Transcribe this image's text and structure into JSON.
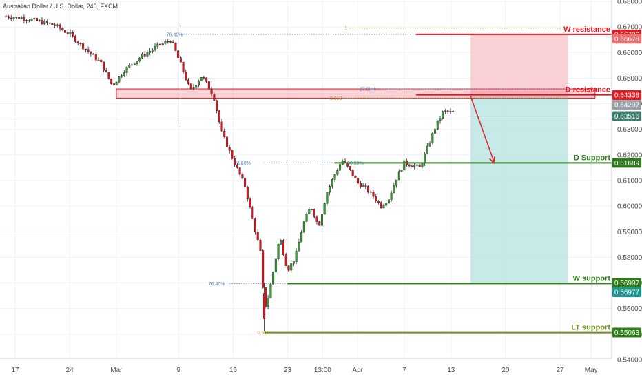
{
  "header": {
    "title": "Australian Dollar / U.S. Dollar, 240, FXCM"
  },
  "chart_data": {
    "type": "candlestick",
    "title": "Australian Dollar / U.S. Dollar, 240, FXCM",
    "xlabel": "",
    "ylabel": "",
    "ylim": [
      0.54,
      0.68
    ],
    "grid": true,
    "y_ticks": [
      "0.68000",
      "0.67000",
      "0.66000",
      "0.65000",
      "0.64000",
      "0.63000",
      "0.62000",
      "0.61000",
      "0.60000",
      "0.59000",
      "0.58000",
      "0.57000",
      "0.56000",
      "0.55000",
      "0.54000"
    ],
    "y_tick_values": [
      0.68,
      0.67,
      0.66,
      0.65,
      0.64,
      0.63,
      0.62,
      0.61,
      0.6,
      0.59,
      0.58,
      0.57,
      0.56,
      0.55,
      0.54
    ],
    "x_ticks": [
      {
        "label": "17",
        "day": 0
      },
      {
        "label": "24",
        "day": 7
      },
      {
        "label": "Mar",
        "day": 13
      },
      {
        "label": "9",
        "day": 21
      },
      {
        "label": "16",
        "day": 28
      },
      {
        "label": "23",
        "day": 35
      },
      {
        "label": "13:00",
        "day": 39.5
      },
      {
        "label": "Apr",
        "day": 44
      },
      {
        "label": "7",
        "day": 50
      },
      {
        "label": "13",
        "day": 56
      },
      {
        "label": "20",
        "day": 63
      },
      {
        "label": "27",
        "day": 70
      },
      {
        "label": "May",
        "day": 74
      }
    ],
    "close_path": [
      {
        "day": -1.5,
        "price": 0.6742
      },
      {
        "day": 1,
        "price": 0.6735
      },
      {
        "day": 3,
        "price": 0.6722
      },
      {
        "day": 5,
        "price": 0.6708
      },
      {
        "day": 7,
        "price": 0.6672
      },
      {
        "day": 9,
        "price": 0.6615
      },
      {
        "day": 11,
        "price": 0.656
      },
      {
        "day": 12.5,
        "price": 0.647
      },
      {
        "day": 14,
        "price": 0.653
      },
      {
        "day": 16,
        "price": 0.658
      },
      {
        "day": 18,
        "price": 0.662
      },
      {
        "day": 20,
        "price": 0.665
      },
      {
        "day": 21.2,
        "price": 0.656
      },
      {
        "day": 22.5,
        "price": 0.645
      },
      {
        "day": 24,
        "price": 0.651
      },
      {
        "day": 25.5,
        "price": 0.643
      },
      {
        "day": 26.5,
        "price": 0.629
      },
      {
        "day": 28,
        "price": 0.618
      },
      {
        "day": 29.5,
        "price": 0.608
      },
      {
        "day": 30.5,
        "price": 0.595
      },
      {
        "day": 31.5,
        "price": 0.582
      },
      {
        "day": 32,
        "price": 0.56
      },
      {
        "day": 32.4,
        "price": 0.563
      },
      {
        "day": 33,
        "price": 0.572
      },
      {
        "day": 34,
        "price": 0.588
      },
      {
        "day": 35,
        "price": 0.575
      },
      {
        "day": 36,
        "price": 0.58
      },
      {
        "day": 37,
        "price": 0.593
      },
      {
        "day": 38,
        "price": 0.6
      },
      {
        "day": 39,
        "price": 0.592
      },
      {
        "day": 40,
        "price": 0.605
      },
      {
        "day": 41,
        "price": 0.612
      },
      {
        "day": 42,
        "price": 0.618
      },
      {
        "day": 43,
        "price": 0.614
      },
      {
        "day": 44,
        "price": 0.609
      },
      {
        "day": 45,
        "price": 0.607
      },
      {
        "day": 46,
        "price": 0.604
      },
      {
        "day": 47,
        "price": 0.6
      },
      {
        "day": 48,
        "price": 0.603
      },
      {
        "day": 49,
        "price": 0.611
      },
      {
        "day": 50,
        "price": 0.617
      },
      {
        "day": 51,
        "price": 0.616
      },
      {
        "day": 52,
        "price": 0.615
      },
      {
        "day": 53,
        "price": 0.623
      },
      {
        "day": 54,
        "price": 0.631
      },
      {
        "day": 55,
        "price": 0.637
      },
      {
        "day": 56.3,
        "price": 0.6365
      }
    ],
    "levels": [
      {
        "name": "W resistance",
        "price": 0.6671,
        "start_day": 51.5,
        "color": "#e0141e"
      },
      {
        "name": "D resistance",
        "price": 0.6435,
        "start_day": 51.5,
        "color": "#e0141e"
      },
      {
        "name": "D Support",
        "price": 0.6169,
        "start_day": 41,
        "color": "#2e7d1a"
      },
      {
        "name": "W support",
        "price": 0.5698,
        "start_day": 35,
        "color": "#2e7d1a"
      },
      {
        "name": "LT support",
        "price": 0.5506,
        "start_day": 32,
        "color": "#6e8e1a"
      }
    ],
    "fib_labels": [
      {
        "text": "76.40%",
        "price": 0.6671,
        "day": 20.5
      },
      {
        "text": "1",
        "price": 0.6696,
        "day": 42.5
      },
      {
        "text": "27.00%",
        "price": 0.6458,
        "day": 45.3
      },
      {
        "text": "0.618",
        "price": 0.6422,
        "day": 41.2
      },
      {
        "text": "23.60%",
        "price": 0.6169,
        "day": 29.2
      },
      {
        "text": "50.00%",
        "price": 0.6169,
        "day": 43.7
      },
      {
        "text": "76.40%",
        "price": 0.5698,
        "day": 25.9
      },
      {
        "text": "0.618",
        "price": 0.5506,
        "day": 31.9
      }
    ],
    "fib_lines": [
      {
        "price": 0.6671,
        "start_day": 21,
        "end_day": 51.5,
        "color": "#5b8fd4"
      },
      {
        "price": 0.6696,
        "start_day": 43,
        "end_day": 71,
        "color": "#c8a84a"
      },
      {
        "price": 0.6458,
        "start_day": 47,
        "end_day": 71,
        "color": "#5b8fd4"
      },
      {
        "price": 0.6422,
        "start_day": 42,
        "end_day": 71,
        "color": "#c8a84a"
      },
      {
        "price": 0.6169,
        "start_day": 32,
        "end_day": 41,
        "color": "#5b8fd4"
      },
      {
        "price": 0.5698,
        "start_day": 27.5,
        "end_day": 35,
        "color": "#5b8fd4"
      },
      {
        "price": 0.5506,
        "start_day": 33,
        "end_day": 71,
        "color": "#c8a84a"
      }
    ],
    "resistance_zone": {
      "top": 0.6458,
      "bottom": 0.6422,
      "start_day": 13,
      "end_day": 74.5,
      "color": "#f07a86"
    },
    "target_box": {
      "entry": 0.6435,
      "stop": 0.6671,
      "target": 0.5698,
      "start_day": 58.5,
      "end_day": 71
    },
    "projection_arrow": {
      "from_day": 58.5,
      "from_price": 0.643,
      "to_day": 61.5,
      "to_price": 0.6169,
      "color": "#d62b2b"
    },
    "price_tags": [
      {
        "text": "0.66706",
        "price": 0.66706,
        "color": "#e01c22"
      },
      {
        "text": "0.66678",
        "price": 0.66538,
        "color": "#f26d6d"
      },
      {
        "text": "0.64338",
        "price": 0.64338,
        "color": "#e01c22"
      },
      {
        "text": "0.64297",
        "price": 0.63957,
        "color": "#9aa0a6"
      },
      {
        "text": "0.63516",
        "price": 0.63516,
        "color": "#3e7f70"
      },
      {
        "text": "0.61689",
        "price": 0.61689,
        "color": "#2e7d1a"
      },
      {
        "text": "0.56997",
        "price": 0.56997,
        "color": "#2e7d1a"
      },
      {
        "text": "0.56977",
        "price": 0.56637,
        "color": "#1a9490"
      },
      {
        "text": "0.55063",
        "price": 0.55063,
        "color": "#2e7d1a"
      }
    ],
    "current_price": 0.63516
  }
}
